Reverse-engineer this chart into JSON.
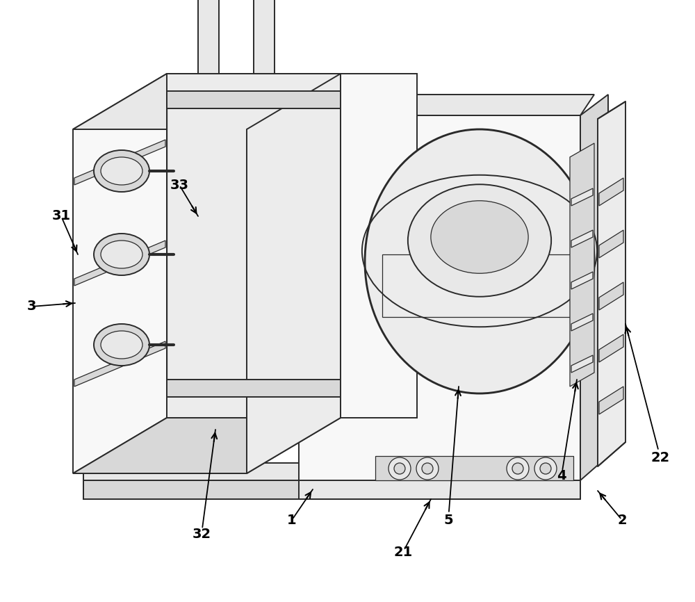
{
  "bg_color": "#ffffff",
  "lc": "#2a2a2a",
  "lw": 1.4,
  "tlw": 0.9,
  "fig_w": 10.0,
  "fig_h": 8.66,
  "shade1": "#f2f2f2",
  "shade2": "#e8e8e8",
  "shade3": "#d8d8d8",
  "shade4": "#ececec",
  "shade5": "#f8f8f8"
}
